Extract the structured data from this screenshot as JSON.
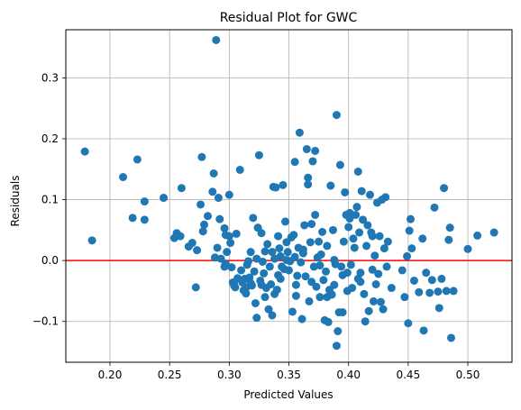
{
  "chart_data": {
    "type": "scatter",
    "title": "Residual Plot for GWC",
    "xlabel": "Predicted Values",
    "ylabel": "Residuals",
    "xlim": [
      0.163,
      0.537
    ],
    "ylim": [
      -0.167,
      0.379
    ],
    "xticks": [
      0.2,
      0.25,
      0.3,
      0.35,
      0.4,
      0.45,
      0.5
    ],
    "xtick_labels": [
      "0.20",
      "0.25",
      "0.30",
      "0.35",
      "0.40",
      "0.45",
      "0.50"
    ],
    "yticks": [
      -0.1,
      0.0,
      0.1,
      0.2,
      0.3
    ],
    "ytick_labels": [
      "−0.1",
      "0.0",
      "0.1",
      "0.2",
      "0.3"
    ],
    "grid": true,
    "reference_line": {
      "y": 0.0,
      "color": "#ff0000"
    },
    "point_color": "#1f77b4",
    "points": [
      [
        0.179,
        0.179
      ],
      [
        0.185,
        0.033
      ],
      [
        0.211,
        0.137
      ],
      [
        0.219,
        0.07
      ],
      [
        0.223,
        0.166
      ],
      [
        0.229,
        0.097
      ],
      [
        0.229,
        0.067
      ],
      [
        0.245,
        0.103
      ],
      [
        0.254,
        0.037
      ],
      [
        0.256,
        0.045
      ],
      [
        0.259,
        0.04
      ],
      [
        0.26,
        0.119
      ],
      [
        0.266,
        0.023
      ],
      [
        0.269,
        0.029
      ],
      [
        0.272,
        -0.044
      ],
      [
        0.273,
        0.017
      ],
      [
        0.276,
        0.092
      ],
      [
        0.277,
        0.17
      ],
      [
        0.278,
        0.048
      ],
      [
        0.279,
        0.059
      ],
      [
        0.282,
        0.073
      ],
      [
        0.286,
        0.113
      ],
      [
        0.287,
        0.143
      ],
      [
        0.288,
        0.005
      ],
      [
        0.289,
        0.362
      ],
      [
        0.29,
        0.021
      ],
      [
        0.291,
        0.103
      ],
      [
        0.292,
        0.068
      ],
      [
        0.293,
        0.003
      ],
      [
        0.296,
        0.053
      ],
      [
        0.297,
        0.042
      ],
      [
        0.298,
        0.014
      ],
      [
        0.296,
        -0.01
      ],
      [
        0.297,
        -0.005
      ],
      [
        0.3,
        0.04
      ],
      [
        0.3,
        0.108
      ],
      [
        0.301,
        0.029
      ],
      [
        0.302,
        -0.011
      ],
      [
        0.303,
        -0.036
      ],
      [
        0.304,
        -0.041
      ],
      [
        0.305,
        -0.044
      ],
      [
        0.306,
        0.044
      ],
      [
        0.307,
        -0.029
      ],
      [
        0.309,
        0.149
      ],
      [
        0.31,
        -0.016
      ],
      [
        0.311,
        -0.036
      ],
      [
        0.312,
        -0.049
      ],
      [
        0.313,
        -0.03
      ],
      [
        0.314,
        -0.054
      ],
      [
        0.315,
        -0.007
      ],
      [
        0.316,
        -0.001
      ],
      [
        0.317,
        -0.028
      ],
      [
        0.318,
        0.014
      ],
      [
        0.319,
        -0.041
      ],
      [
        0.32,
        0.07
      ],
      [
        0.321,
        -0.018
      ],
      [
        0.322,
        -0.07
      ],
      [
        0.323,
        -0.094
      ],
      [
        0.323,
        0.003
      ],
      [
        0.324,
        0.054
      ],
      [
        0.325,
        0.173
      ],
      [
        0.326,
        -0.033
      ],
      [
        0.327,
        -0.04
      ],
      [
        0.327,
        0.045
      ],
      [
        0.328,
        -0.002
      ],
      [
        0.329,
        -0.021
      ],
      [
        0.33,
        0.015
      ],
      [
        0.331,
        -0.045
      ],
      [
        0.332,
        0.027
      ],
      [
        0.333,
        -0.08
      ],
      [
        0.334,
        -0.01
      ],
      [
        0.335,
        -0.039
      ],
      [
        0.336,
        0.014
      ],
      [
        0.337,
        0.121
      ],
      [
        0.338,
        0.003
      ],
      [
        0.338,
        -0.055
      ],
      [
        0.339,
        0.12
      ],
      [
        0.34,
        -0.048
      ],
      [
        0.341,
        -0.024
      ],
      [
        0.342,
        0.02
      ],
      [
        0.343,
        0.007
      ],
      [
        0.344,
        -0.01
      ],
      [
        0.345,
        0.124
      ],
      [
        0.346,
        -0.014
      ],
      [
        0.347,
        0.064
      ],
      [
        0.348,
        0.03
      ],
      [
        0.349,
        0.014
      ],
      [
        0.35,
        -0.016
      ],
      [
        0.351,
        -0.001
      ],
      [
        0.352,
        0.038
      ],
      [
        0.353,
        -0.084
      ],
      [
        0.354,
        0.042
      ],
      [
        0.355,
        0.162
      ],
      [
        0.356,
        -0.058
      ],
      [
        0.357,
        -0.025
      ],
      [
        0.358,
        0.021
      ],
      [
        0.359,
        0.21
      ],
      [
        0.36,
        -0.003
      ],
      [
        0.361,
        -0.096
      ],
      [
        0.362,
        0.018
      ],
      [
        0.363,
        0.058
      ],
      [
        0.364,
        -0.026
      ],
      [
        0.365,
        0.183
      ],
      [
        0.366,
        0.136
      ],
      [
        0.366,
        0.125
      ],
      [
        0.367,
        -0.067
      ],
      [
        0.368,
        0.03
      ],
      [
        0.369,
        0.06
      ],
      [
        0.37,
        0.163
      ],
      [
        0.371,
        -0.01
      ],
      [
        0.372,
        0.18
      ],
      [
        0.372,
        0.075
      ],
      [
        0.373,
        -0.043
      ],
      [
        0.374,
        0.005
      ],
      [
        0.375,
        0.031
      ],
      [
        0.376,
        -0.06
      ],
      [
        0.377,
        0.01
      ],
      [
        0.378,
        0.047
      ],
      [
        0.379,
        -0.032
      ],
      [
        0.38,
        -0.098
      ],
      [
        0.381,
        -0.018
      ],
      [
        0.382,
        0.024
      ],
      [
        0.383,
        -0.101
      ],
      [
        0.384,
        -0.048
      ],
      [
        0.385,
        0.123
      ],
      [
        0.386,
        -0.056
      ],
      [
        0.387,
        0.05
      ],
      [
        0.388,
        -0.04
      ],
      [
        0.389,
        -0.006
      ],
      [
        0.39,
        0.239
      ],
      [
        0.39,
        -0.14
      ],
      [
        0.391,
        -0.116
      ],
      [
        0.392,
        -0.085
      ],
      [
        0.393,
        0.157
      ],
      [
        0.394,
        -0.01
      ],
      [
        0.395,
        -0.024
      ],
      [
        0.396,
        0.031
      ],
      [
        0.397,
        0.112
      ],
      [
        0.398,
        0.075
      ],
      [
        0.399,
        -0.05
      ],
      [
        0.4,
        0.055
      ],
      [
        0.401,
        0.078
      ],
      [
        0.402,
        -0.007
      ],
      [
        0.403,
        -0.045
      ],
      [
        0.404,
        0.036
      ],
      [
        0.405,
        0.021
      ],
      [
        0.406,
        0.075
      ],
      [
        0.407,
        0.088
      ],
      [
        0.408,
        0.146
      ],
      [
        0.409,
        0.046
      ],
      [
        0.41,
        -0.02
      ],
      [
        0.411,
        0.114
      ],
      [
        0.412,
        0.067
      ],
      [
        0.413,
        -0.055
      ],
      [
        0.414,
        -0.1
      ],
      [
        0.415,
        0.024
      ],
      [
        0.416,
        0.058
      ],
      [
        0.417,
        -0.083
      ],
      [
        0.418,
        0.108
      ],
      [
        0.419,
        0.046
      ],
      [
        0.42,
        -0.015
      ],
      [
        0.421,
        -0.067
      ],
      [
        0.422,
        0.008
      ],
      [
        0.423,
        -0.039
      ],
      [
        0.424,
        0.095
      ],
      [
        0.425,
        -0.022
      ],
      [
        0.426,
        0.04
      ],
      [
        0.427,
        -0.068
      ],
      [
        0.428,
        0.1
      ],
      [
        0.429,
        -0.08
      ],
      [
        0.43,
        0.02
      ],
      [
        0.431,
        0.104
      ],
      [
        0.432,
        -0.01
      ],
      [
        0.433,
        0.031
      ],
      [
        0.436,
        -0.045
      ],
      [
        0.445,
        -0.016
      ],
      [
        0.447,
        -0.06
      ],
      [
        0.449,
        0.007
      ],
      [
        0.45,
        -0.103
      ],
      [
        0.451,
        0.049
      ],
      [
        0.452,
        0.068
      ],
      [
        0.453,
        0.02
      ],
      [
        0.455,
        -0.033
      ],
      [
        0.459,
        -0.052
      ],
      [
        0.462,
        0.036
      ],
      [
        0.463,
        -0.115
      ],
      [
        0.465,
        -0.02
      ],
      [
        0.468,
        -0.053
      ],
      [
        0.47,
        -0.032
      ],
      [
        0.472,
        0.087
      ],
      [
        0.475,
        -0.051
      ],
      [
        0.476,
        -0.078
      ],
      [
        0.478,
        -0.03
      ],
      [
        0.48,
        0.119
      ],
      [
        0.482,
        -0.05
      ],
      [
        0.484,
        0.034
      ],
      [
        0.485,
        0.054
      ],
      [
        0.486,
        -0.127
      ],
      [
        0.488,
        -0.05
      ],
      [
        0.5,
        0.019
      ],
      [
        0.508,
        0.041
      ],
      [
        0.522,
        0.046
      ],
      [
        0.304,
        -0.038
      ],
      [
        0.318,
        -0.037
      ],
      [
        0.33,
        -0.06
      ],
      [
        0.343,
        -0.03
      ],
      [
        0.356,
        -0.04
      ],
      [
        0.369,
        -0.035
      ],
      [
        0.382,
        -0.06
      ],
      [
        0.395,
        -0.085
      ],
      [
        0.408,
        -0.03
      ],
      [
        0.355,
        0.006
      ],
      [
        0.362,
        0.012
      ],
      [
        0.348,
        0.001
      ],
      [
        0.376,
        -0.008
      ],
      [
        0.388,
        0.001
      ],
      [
        0.399,
        -0.02
      ],
      [
        0.41,
        -0.035
      ],
      [
        0.42,
        0.04
      ],
      [
        0.401,
        0.069
      ],
      [
        0.341,
        0.04
      ],
      [
        0.336,
        -0.09
      ],
      [
        0.314,
        -0.045
      ]
    ]
  }
}
